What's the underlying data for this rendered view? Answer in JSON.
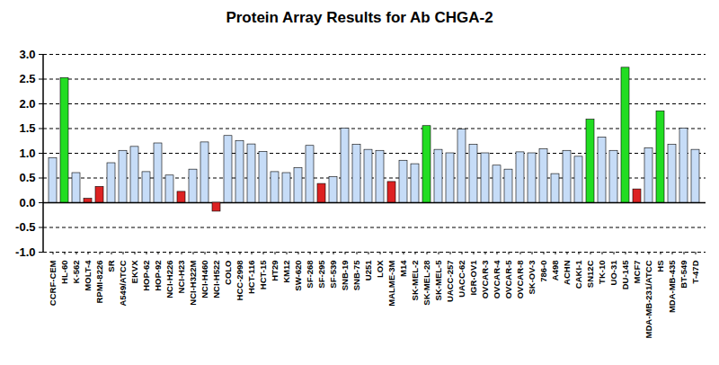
{
  "chart_data": {
    "type": "bar",
    "title": "Protein Array Results for Ab CHGA-2",
    "categories": [
      "CCRF-CEM",
      "HL-60",
      "K-562",
      "MOLT-4",
      "RPMI-8226",
      "SR",
      "A549/ATCC",
      "EKVX",
      "HOP-62",
      "HOP-92",
      "NCI-H226",
      "NCI-H23",
      "NCI-H322M",
      "NCI-H460",
      "NCI-H522",
      "COLO",
      "HCC-2998",
      "HCT-116",
      "HCT-15",
      "HT29",
      "KM12",
      "SW-620",
      "SF-268",
      "SF-295",
      "SF-539",
      "SNB-19",
      "SNB-75",
      "U251",
      "LOX",
      "MALME-3M",
      "M14",
      "SK-MEL-2",
      "SK-MEL-28",
      "SK-MEL-5",
      "UACC-257",
      "UACC-62",
      "IGR-OV1",
      "OVCAR-3",
      "OVCAR-4",
      "OVCAR-5",
      "OVCAR-8",
      "SK-OV-3",
      "786-0",
      "A498",
      "ACHN",
      "CAKI-1",
      "SN12C",
      "TK-10",
      "UO-31",
      "DU-145",
      "MCF7",
      "MDA-MB-231/ATCC",
      "HS",
      "MDA-MB-435",
      "BT-549",
      "T-47D"
    ],
    "values": [
      0.9,
      2.52,
      0.6,
      0.08,
      0.32,
      0.8,
      1.05,
      1.13,
      0.62,
      1.2,
      0.55,
      0.22,
      0.67,
      1.22,
      -0.18,
      1.35,
      1.25,
      1.18,
      1.03,
      0.62,
      0.6,
      0.7,
      1.15,
      0.38,
      0.52,
      1.5,
      1.17,
      1.07,
      1.05,
      0.42,
      0.85,
      0.78,
      1.55,
      1.07,
      1.0,
      1.48,
      1.17,
      1.0,
      0.75,
      0.67,
      1.02,
      1.0,
      1.08,
      0.58,
      1.05,
      0.93,
      1.68,
      1.32,
      1.05,
      2.73,
      0.27,
      1.1,
      1.85,
      1.17,
      1.5,
      1.07
    ],
    "colors": [
      "#c6dcf7",
      "#22dd22",
      "#c6dcf7",
      "#dd2222",
      "#dd2222",
      "#c6dcf7",
      "#c6dcf7",
      "#c6dcf7",
      "#c6dcf7",
      "#c6dcf7",
      "#c6dcf7",
      "#dd2222",
      "#c6dcf7",
      "#c6dcf7",
      "#dd2222",
      "#c6dcf7",
      "#c6dcf7",
      "#c6dcf7",
      "#c6dcf7",
      "#c6dcf7",
      "#c6dcf7",
      "#c6dcf7",
      "#c6dcf7",
      "#dd2222",
      "#c6dcf7",
      "#c6dcf7",
      "#c6dcf7",
      "#c6dcf7",
      "#c6dcf7",
      "#dd2222",
      "#c6dcf7",
      "#c6dcf7",
      "#22dd22",
      "#c6dcf7",
      "#c6dcf7",
      "#c6dcf7",
      "#c6dcf7",
      "#c6dcf7",
      "#c6dcf7",
      "#c6dcf7",
      "#c6dcf7",
      "#c6dcf7",
      "#c6dcf7",
      "#c6dcf7",
      "#c6dcf7",
      "#c6dcf7",
      "#22dd22",
      "#c6dcf7",
      "#c6dcf7",
      "#22dd22",
      "#dd2222",
      "#c6dcf7",
      "#22dd22",
      "#c6dcf7",
      "#c6dcf7",
      "#c6dcf7"
    ],
    "ylim": [
      -1.0,
      3.0
    ],
    "yticks": [
      {
        "value": -1.0,
        "label": "-1.0"
      },
      {
        "value": -0.5,
        "label": "-0.5"
      },
      {
        "value": 0,
        "label": "0.0"
      },
      {
        "value": 0.5,
        "label": "0.5"
      },
      {
        "value": 1.0,
        "label": "1.0"
      },
      {
        "value": 1.5,
        "label": "1.5"
      },
      {
        "value": 2.0,
        "label": "2.0"
      },
      {
        "value": 2.5,
        "label": "2.5"
      },
      {
        "value": 3.0,
        "label": "3.0"
      }
    ],
    "grid": true
  }
}
